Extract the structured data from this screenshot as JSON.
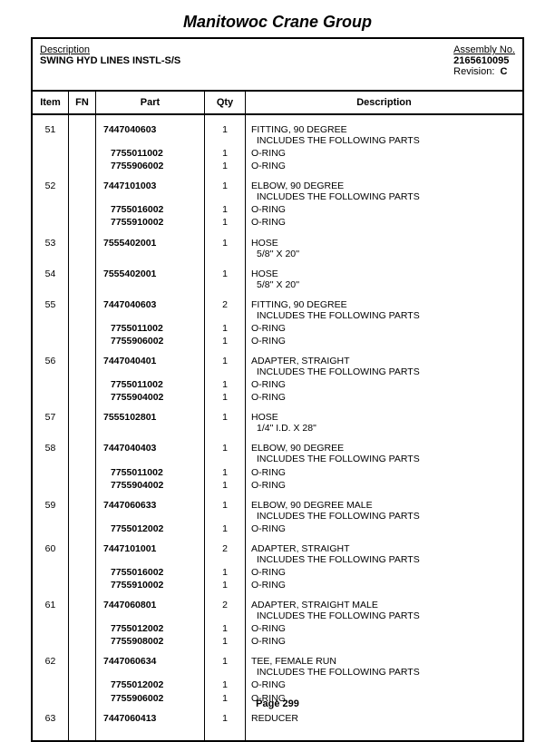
{
  "page_title": "Manitowoc Crane Group",
  "header": {
    "desc_label": "Description",
    "desc_value": "SWING HYD LINES INSTL-S/S",
    "asm_label": "Assembly No.",
    "asm_value": "2165610095",
    "rev_label": "Revision:",
    "rev_value": "C"
  },
  "columns": {
    "item": "Item",
    "fn": "FN",
    "part": "Part",
    "qty": "Qty",
    "desc": "Description"
  },
  "groups": [
    {
      "item": "51",
      "part": "7447040603",
      "qty": "1",
      "desc": "FITTING, 90 DEGREE",
      "sub_desc": "INCLUDES THE FOLLOWING PARTS",
      "subs": [
        {
          "part": "7755011002",
          "qty": "1",
          "desc": "O-RING"
        },
        {
          "part": "7755906002",
          "qty": "1",
          "desc": "O-RING"
        }
      ]
    },
    {
      "item": "52",
      "part": "7447101003",
      "qty": "1",
      "desc": "ELBOW, 90 DEGREE",
      "sub_desc": "INCLUDES THE FOLLOWING PARTS",
      "subs": [
        {
          "part": "7755016002",
          "qty": "1",
          "desc": "O-RING"
        },
        {
          "part": "7755910002",
          "qty": "1",
          "desc": "O-RING"
        }
      ]
    },
    {
      "item": "53",
      "part": "7555402001",
      "qty": "1",
      "desc": "HOSE",
      "sub_desc": "5/8'' X 20''",
      "subs": []
    },
    {
      "item": "54",
      "part": "7555402001",
      "qty": "1",
      "desc": "HOSE",
      "sub_desc": "5/8'' X 20''",
      "subs": []
    },
    {
      "item": "55",
      "part": "7447040603",
      "qty": "2",
      "desc": "FITTING, 90 DEGREE",
      "sub_desc": "INCLUDES THE FOLLOWING PARTS",
      "subs": [
        {
          "part": "7755011002",
          "qty": "1",
          "desc": "O-RING"
        },
        {
          "part": "7755906002",
          "qty": "1",
          "desc": "O-RING"
        }
      ]
    },
    {
      "item": "56",
      "part": "7447040401",
      "qty": "1",
      "desc": "ADAPTER, STRAIGHT",
      "sub_desc": "INCLUDES THE FOLLOWING PARTS",
      "subs": [
        {
          "part": "7755011002",
          "qty": "1",
          "desc": "O-RING"
        },
        {
          "part": "7755904002",
          "qty": "1",
          "desc": "O-RING"
        }
      ]
    },
    {
      "item": "57",
      "part": "7555102801",
      "qty": "1",
      "desc": "HOSE",
      "sub_desc": "1/4\" I.D. X 28\"",
      "subs": []
    },
    {
      "item": "58",
      "part": "7447040403",
      "qty": "1",
      "desc": "ELBOW, 90 DEGREE",
      "sub_desc": "INCLUDES THE FOLLOWING PARTS",
      "subs": [
        {
          "part": "7755011002",
          "qty": "1",
          "desc": "O-RING"
        },
        {
          "part": "7755904002",
          "qty": "1",
          "desc": "O-RING"
        }
      ]
    },
    {
      "item": "59",
      "part": "7447060633",
      "qty": "1",
      "desc": "ELBOW, 90 DEGREE MALE",
      "sub_desc": "INCLUDES THE FOLLOWING PARTS",
      "subs": [
        {
          "part": "7755012002",
          "qty": "1",
          "desc": "O-RING"
        }
      ]
    },
    {
      "item": "60",
      "part": "7447101001",
      "qty": "2",
      "desc": "ADAPTER, STRAIGHT",
      "sub_desc": "INCLUDES THE FOLLOWING PARTS",
      "subs": [
        {
          "part": "7755016002",
          "qty": "1",
          "desc": "O-RING"
        },
        {
          "part": "7755910002",
          "qty": "1",
          "desc": "O-RING"
        }
      ]
    },
    {
      "item": "61",
      "part": "7447060801",
      "qty": "2",
      "desc": "ADAPTER, STRAIGHT MALE",
      "sub_desc": "INCLUDES THE FOLLOWING PARTS",
      "subs": [
        {
          "part": "7755012002",
          "qty": "1",
          "desc": "O-RING"
        },
        {
          "part": "7755908002",
          "qty": "1",
          "desc": "O-RING"
        }
      ]
    },
    {
      "item": "62",
      "part": "7447060634",
      "qty": "1",
      "desc": "TEE, FEMALE RUN",
      "sub_desc": "INCLUDES THE FOLLOWING PARTS",
      "subs": [
        {
          "part": "7755012002",
          "qty": "1",
          "desc": "O-RING"
        },
        {
          "part": "7755906002",
          "qty": "1",
          "desc": "O-RING"
        }
      ]
    },
    {
      "item": "63",
      "part": "7447060413",
      "qty": "1",
      "desc": "REDUCER",
      "sub_desc": "",
      "subs": []
    }
  ],
  "footer": "Page 299"
}
